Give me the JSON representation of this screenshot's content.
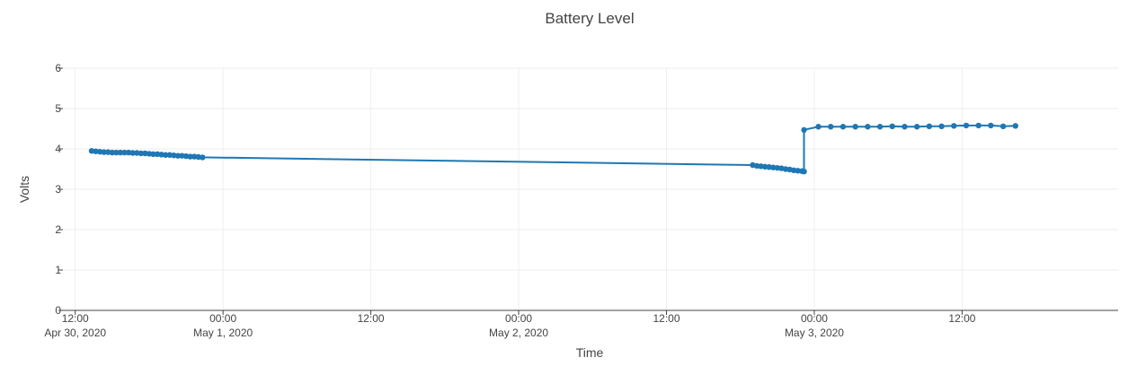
{
  "chart_data": {
    "type": "line",
    "title": "Battery Level",
    "xlabel": "Time",
    "ylabel": "Volts",
    "ylim": [
      0,
      6
    ],
    "xlim": [
      "2020-04-30T11:00",
      "2020-05-04T00:40"
    ],
    "yticks": [
      0,
      1,
      2,
      3,
      4,
      5,
      6
    ],
    "xticks": [
      {
        "t": "2020-04-30T12:00",
        "line1": "12:00",
        "line2": "Apr 30, 2020"
      },
      {
        "t": "2020-05-01T00:00",
        "line1": "00:00",
        "line2": "May 1, 2020"
      },
      {
        "t": "2020-05-01T12:00",
        "line1": "12:00",
        "line2": ""
      },
      {
        "t": "2020-05-02T00:00",
        "line1": "00:00",
        "line2": "May 2, 2020"
      },
      {
        "t": "2020-05-02T12:00",
        "line1": "12:00",
        "line2": ""
      },
      {
        "t": "2020-05-03T00:00",
        "line1": "00:00",
        "line2": "May 3, 2020"
      },
      {
        "t": "2020-05-03T12:00",
        "line1": "12:00",
        "line2": ""
      }
    ],
    "grid": true,
    "color": "#1f77b4",
    "series": [
      {
        "points": [
          [
            "2020-04-30T13:20",
            3.95
          ],
          [
            "2020-04-30T13:40",
            3.94
          ],
          [
            "2020-04-30T14:00",
            3.93
          ],
          [
            "2020-04-30T14:20",
            3.92
          ],
          [
            "2020-04-30T14:40",
            3.92
          ],
          [
            "2020-04-30T15:00",
            3.91
          ],
          [
            "2020-04-30T15:20",
            3.91
          ],
          [
            "2020-04-30T15:40",
            3.91
          ],
          [
            "2020-04-30T16:00",
            3.91
          ],
          [
            "2020-04-30T16:20",
            3.91
          ],
          [
            "2020-04-30T16:40",
            3.9
          ],
          [
            "2020-04-30T17:00",
            3.9
          ],
          [
            "2020-04-30T17:20",
            3.89
          ],
          [
            "2020-04-30T17:40",
            3.89
          ],
          [
            "2020-04-30T18:00",
            3.88
          ],
          [
            "2020-04-30T18:20",
            3.87
          ],
          [
            "2020-04-30T18:40",
            3.87
          ],
          [
            "2020-04-30T19:00",
            3.86
          ],
          [
            "2020-04-30T19:20",
            3.85
          ],
          [
            "2020-04-30T19:40",
            3.85
          ],
          [
            "2020-04-30T20:00",
            3.84
          ],
          [
            "2020-04-30T20:20",
            3.83
          ],
          [
            "2020-04-30T20:40",
            3.83
          ],
          [
            "2020-04-30T21:00",
            3.82
          ],
          [
            "2020-04-30T21:20",
            3.81
          ],
          [
            "2020-04-30T21:40",
            3.81
          ],
          [
            "2020-04-30T22:00",
            3.8
          ],
          [
            "2020-04-30T22:20",
            3.79
          ],
          [
            "2020-05-02T19:00",
            3.6
          ],
          [
            "2020-05-02T19:20",
            3.58
          ],
          [
            "2020-05-02T19:40",
            3.57
          ],
          [
            "2020-05-02T20:00",
            3.56
          ],
          [
            "2020-05-02T20:20",
            3.55
          ],
          [
            "2020-05-02T20:40",
            3.54
          ],
          [
            "2020-05-02T21:00",
            3.53
          ],
          [
            "2020-05-02T21:20",
            3.52
          ],
          [
            "2020-05-02T21:40",
            3.5
          ],
          [
            "2020-05-02T22:00",
            3.49
          ],
          [
            "2020-05-02T22:20",
            3.47
          ],
          [
            "2020-05-02T22:40",
            3.46
          ],
          [
            "2020-05-02T23:00",
            3.45
          ],
          [
            "2020-05-02T23:10",
            3.44
          ],
          [
            "2020-05-02T23:10",
            4.47
          ],
          [
            "2020-05-03T00:20",
            4.55
          ],
          [
            "2020-05-03T01:20",
            4.55
          ],
          [
            "2020-05-03T02:20",
            4.55
          ],
          [
            "2020-05-03T03:20",
            4.55
          ],
          [
            "2020-05-03T04:20",
            4.55
          ],
          [
            "2020-05-03T05:20",
            4.55
          ],
          [
            "2020-05-03T06:20",
            4.56
          ],
          [
            "2020-05-03T07:20",
            4.55
          ],
          [
            "2020-05-03T08:20",
            4.55
          ],
          [
            "2020-05-03T09:20",
            4.56
          ],
          [
            "2020-05-03T10:20",
            4.56
          ],
          [
            "2020-05-03T11:20",
            4.57
          ],
          [
            "2020-05-03T12:20",
            4.58
          ],
          [
            "2020-05-03T13:20",
            4.58
          ],
          [
            "2020-05-03T14:20",
            4.58
          ],
          [
            "2020-05-03T15:20",
            4.56
          ],
          [
            "2020-05-03T16:20",
            4.57
          ]
        ]
      }
    ]
  }
}
